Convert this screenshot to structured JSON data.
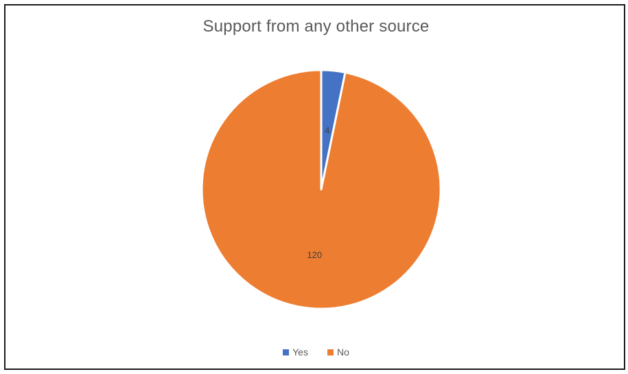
{
  "chart_data": {
    "type": "pie",
    "title": "Support from any other source",
    "categories": [
      "Yes",
      "No"
    ],
    "values": [
      4,
      120
    ],
    "colors": [
      "#4472c4",
      "#ed7d31"
    ],
    "data_labels": [
      "4",
      "120"
    ],
    "legend": "bottom",
    "start_angle_deg": 0
  }
}
